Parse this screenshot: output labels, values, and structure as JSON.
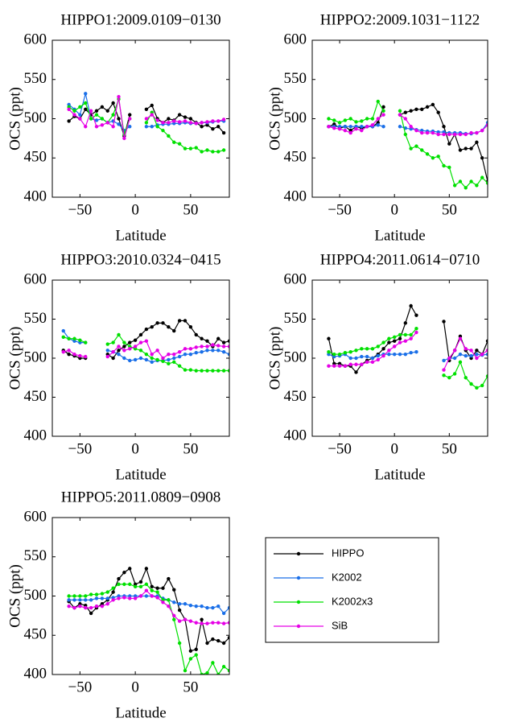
{
  "chart_data": [
    {
      "type": "line",
      "title": "HIPPO1:2009.0109−0130",
      "xlabel": "Latitude",
      "ylabel": "OCS (ppt)",
      "xlim": [
        -75,
        85
      ],
      "xticks": [
        {
          "value": -50,
          "label": "−50"
        },
        0,
        50
      ],
      "ylim": [
        400,
        600
      ],
      "yticks": [
        400,
        450,
        500,
        550,
        600
      ],
      "x": [
        -60,
        -55,
        -50,
        -45,
        -40,
        -35,
        -30,
        -25,
        -20,
        -15,
        -10,
        -5,
        0,
        10,
        15,
        20,
        25,
        30,
        35,
        40,
        45,
        50,
        55,
        60,
        65,
        70,
        75,
        80
      ],
      "series": [
        {
          "name": "HIPPO",
          "color": "#000000",
          "values": [
            497,
            503,
            500,
            512,
            505,
            510,
            515,
            510,
            520,
            500,
            478,
            505,
            null,
            512,
            517,
            500,
            495,
            500,
            498,
            505,
            502,
            500,
            495,
            490,
            492,
            487,
            490,
            482
          ]
        },
        {
          "name": "K2002",
          "color": "#1a6fe8",
          "values": [
            518,
            512,
            505,
            532,
            500,
            498,
            500,
            495,
            497,
            493,
            485,
            490,
            null,
            490,
            490,
            492,
            493,
            493,
            494,
            494,
            495,
            494,
            494,
            495,
            495,
            496,
            497,
            497
          ]
        },
        {
          "name": "K2002x3",
          "color": "#00e000",
          "values": [
            515,
            510,
            515,
            520,
            500,
            505,
            500,
            495,
            505,
            525,
            480,
            500,
            null,
            495,
            508,
            490,
            485,
            478,
            470,
            468,
            462,
            462,
            463,
            458,
            460,
            458,
            458,
            460
          ]
        },
        {
          "name": "SiB",
          "color": "#e600e6",
          "values": [
            512,
            505,
            500,
            490,
            510,
            490,
            492,
            495,
            490,
            528,
            475,
            500,
            null,
            500,
            505,
            498,
            495,
            495,
            497,
            496,
            497,
            495,
            494,
            495,
            496,
            497,
            497,
            499
          ]
        }
      ]
    },
    {
      "type": "line",
      "title": "HIPPO2:2009.1031−1122",
      "xlabel": "Latitude",
      "ylabel": "OCS (ppt)",
      "xlim": [
        -75,
        85
      ],
      "xticks": [
        {
          "value": -50,
          "label": "−50"
        },
        0,
        50
      ],
      "ylim": [
        400,
        600
      ],
      "yticks": [
        400,
        450,
        500,
        550,
        600
      ],
      "x": [
        -60,
        -55,
        -50,
        -45,
        -40,
        -35,
        -30,
        -25,
        -20,
        -15,
        -10,
        0,
        5,
        10,
        15,
        20,
        25,
        30,
        35,
        40,
        45,
        50,
        55,
        60,
        65,
        70,
        75,
        80,
        85
      ],
      "series": [
        {
          "name": "HIPPO",
          "color": "#000000",
          "values": [
            490,
            493,
            488,
            490,
            485,
            490,
            488,
            490,
            490,
            495,
            515,
            null,
            505,
            508,
            510,
            512,
            512,
            515,
            518,
            508,
            490,
            468,
            480,
            460,
            462,
            462,
            470,
            450,
            420
          ]
        },
        {
          "name": "K2002",
          "color": "#1a6fe8",
          "values": [
            490,
            490,
            490,
            490,
            490,
            490,
            490,
            490,
            490,
            492,
            490,
            null,
            490,
            488,
            487,
            486,
            485,
            484,
            484,
            483,
            483,
            482,
            482,
            482,
            481,
            481,
            482,
            485,
            495
          ]
        },
        {
          "name": "K2002x3",
          "color": "#00e000",
          "values": [
            500,
            498,
            495,
            498,
            500,
            496,
            497,
            500,
            500,
            522,
            510,
            null,
            510,
            480,
            462,
            465,
            460,
            455,
            450,
            452,
            440,
            438,
            415,
            420,
            412,
            420,
            415,
            425,
            418
          ]
        },
        {
          "name": "SiB",
          "color": "#e600e6",
          "values": [
            490,
            488,
            487,
            485,
            482,
            487,
            485,
            490,
            492,
            500,
            505,
            null,
            505,
            500,
            490,
            485,
            482,
            482,
            482,
            480,
            480,
            480,
            480,
            480,
            480,
            482,
            482,
            485,
            492
          ]
        }
      ]
    },
    {
      "type": "line",
      "title": "HIPPO3:2010.0324−0415",
      "xlabel": "Latitude",
      "ylabel": "OCS (ppt)",
      "xlim": [
        -75,
        85
      ],
      "xticks": [
        {
          "value": -50,
          "label": "−50"
        },
        0,
        50
      ],
      "ylim": [
        400,
        600
      ],
      "yticks": [
        400,
        450,
        500,
        550,
        600
      ],
      "x": [
        -65,
        -60,
        -55,
        -50,
        -45,
        -35,
        -25,
        -20,
        -15,
        -10,
        -5,
        0,
        5,
        10,
        15,
        20,
        25,
        30,
        35,
        40,
        45,
        50,
        55,
        60,
        65,
        70,
        75,
        80,
        85
      ],
      "series": [
        {
          "name": "HIPPO",
          "color": "#000000",
          "values": [
            510,
            505,
            503,
            500,
            500,
            null,
            505,
            500,
            510,
            515,
            520,
            523,
            530,
            537,
            540,
            545,
            545,
            540,
            535,
            548,
            548,
            540,
            530,
            525,
            522,
            515,
            525,
            520,
            522
          ]
        },
        {
          "name": "K2002",
          "color": "#1a6fe8",
          "values": [
            535,
            525,
            522,
            520,
            520,
            null,
            510,
            508,
            505,
            500,
            497,
            498,
            500,
            498,
            495,
            497,
            497,
            498,
            500,
            502,
            505,
            505,
            507,
            508,
            510,
            510,
            510,
            508,
            505
          ]
        },
        {
          "name": "K2002x3",
          "color": "#00e000",
          "values": [
            527,
            525,
            525,
            523,
            520,
            null,
            518,
            520,
            530,
            520,
            515,
            512,
            510,
            505,
            500,
            498,
            496,
            493,
            495,
            490,
            485,
            485,
            484,
            484,
            484,
            484,
            484,
            484,
            484
          ]
        },
        {
          "name": "SiB",
          "color": "#e600e6",
          "values": [
            508,
            510,
            505,
            503,
            502,
            null,
            502,
            508,
            515,
            510,
            512,
            515,
            520,
            522,
            505,
            510,
            500,
            505,
            505,
            508,
            512,
            512,
            514,
            515,
            515,
            517,
            516,
            515,
            515
          ]
        }
      ]
    },
    {
      "type": "line",
      "title": "HIPPO4:2011.0614−0710",
      "xlabel": "Latitude",
      "ylabel": "OCS (ppt)",
      "xlim": [
        -75,
        85
      ],
      "xticks": [
        {
          "value": -50,
          "label": "−50"
        },
        0,
        50
      ],
      "ylim": [
        400,
        600
      ],
      "yticks": [
        400,
        450,
        500,
        550,
        600
      ],
      "x": [
        -60,
        -55,
        -50,
        -45,
        -40,
        -35,
        -30,
        -25,
        -20,
        -15,
        -10,
        -5,
        0,
        5,
        10,
        15,
        20,
        30,
        45,
        50,
        55,
        60,
        65,
        70,
        75,
        80,
        85
      ],
      "series": [
        {
          "name": "HIPPO",
          "color": "#000000",
          "values": [
            525,
            493,
            493,
            490,
            490,
            482,
            492,
            497,
            500,
            505,
            512,
            520,
            522,
            525,
            545,
            567,
            555,
            null,
            547,
            497,
            510,
            528,
            510,
            500,
            510,
            505,
            522
          ]
        },
        {
          "name": "K2002",
          "color": "#1a6fe8",
          "values": [
            505,
            502,
            503,
            505,
            500,
            500,
            502,
            502,
            500,
            503,
            505,
            505,
            505,
            505,
            505,
            507,
            508,
            null,
            497,
            500,
            500,
            505,
            503,
            503,
            505,
            504,
            505
          ]
        },
        {
          "name": "K2002x3",
          "color": "#00e000",
          "values": [
            508,
            505,
            505,
            507,
            508,
            510,
            512,
            512,
            512,
            515,
            520,
            525,
            527,
            530,
            530,
            530,
            538,
            null,
            478,
            475,
            480,
            495,
            475,
            467,
            462,
            465,
            477
          ]
        },
        {
          "name": "SiB",
          "color": "#e600e6",
          "values": [
            490,
            490,
            490,
            490,
            492,
            492,
            492,
            495,
            495,
            498,
            503,
            510,
            515,
            520,
            522,
            525,
            533,
            null,
            485,
            500,
            510,
            525,
            512,
            510,
            500,
            505,
            510
          ]
        }
      ]
    },
    {
      "type": "line",
      "title": "HIPPO5:2011.0809−0908",
      "xlabel": "Latitude",
      "ylabel": "OCS (ppt)",
      "xlim": [
        -75,
        85
      ],
      "xticks": [
        {
          "value": -50,
          "label": "−50"
        },
        0,
        50
      ],
      "ylim": [
        400,
        600
      ],
      "yticks": [
        400,
        450,
        500,
        550,
        600
      ],
      "x": [
        -60,
        -55,
        -50,
        -45,
        -40,
        -35,
        -30,
        -25,
        -20,
        -15,
        -10,
        -5,
        0,
        5,
        10,
        15,
        20,
        25,
        30,
        35,
        40,
        45,
        50,
        55,
        60,
        65,
        70,
        75,
        80,
        85
      ],
      "series": [
        {
          "name": "HIPPO",
          "color": "#000000",
          "values": [
            493,
            485,
            490,
            488,
            478,
            485,
            490,
            495,
            505,
            522,
            530,
            535,
            515,
            518,
            535,
            512,
            510,
            510,
            522,
            508,
            482,
            470,
            430,
            432,
            470,
            440,
            445,
            443,
            440,
            447
          ]
        },
        {
          "name": "K2002",
          "color": "#1a6fe8",
          "values": [
            495,
            495,
            495,
            495,
            495,
            497,
            497,
            497,
            498,
            500,
            500,
            500,
            500,
            500,
            500,
            500,
            500,
            497,
            495,
            492,
            490,
            490,
            488,
            487,
            487,
            485,
            485,
            487,
            478,
            485
          ]
        },
        {
          "name": "K2002x3",
          "color": "#00e000",
          "values": [
            500,
            500,
            500,
            500,
            502,
            502,
            503,
            505,
            510,
            515,
            515,
            515,
            512,
            512,
            515,
            507,
            505,
            495,
            495,
            470,
            440,
            405,
            420,
            425,
            400,
            402,
            415,
            400,
            410,
            405
          ]
        },
        {
          "name": "SiB",
          "color": "#e600e6",
          "values": [
            487,
            485,
            487,
            485,
            485,
            487,
            487,
            490,
            495,
            497,
            498,
            497,
            497,
            500,
            507,
            500,
            498,
            492,
            487,
            475,
            468,
            470,
            468,
            466,
            465,
            465,
            466,
            466,
            465,
            466
          ]
        }
      ],
      "legend": "outside-right"
    }
  ]
}
